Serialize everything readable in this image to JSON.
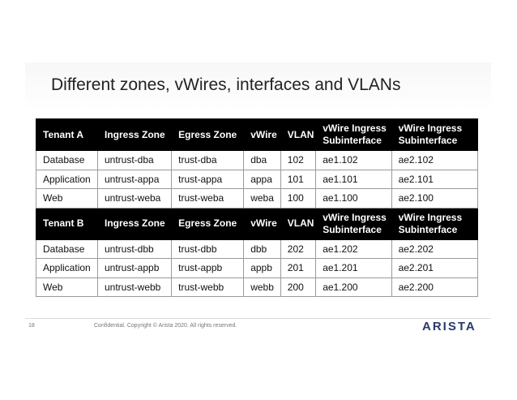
{
  "title": "Different zones, vWires, interfaces and VLANs",
  "table": {
    "sections": [
      {
        "header": [
          "Tenant A",
          "Ingress Zone",
          "Egress Zone",
          "vWire",
          "VLAN",
          "vWire Ingress Subinterface",
          "vWire Ingress Subinterface"
        ],
        "rows": [
          [
            "Database",
            "untrust-dba",
            "trust-dba",
            "dba",
            "102",
            "ae1.102",
            "ae2.102"
          ],
          [
            "Application",
            "untrust-appa",
            "trust-appa",
            "appa",
            "101",
            "ae1.101",
            "ae2.101"
          ],
          [
            "Web",
            "untrust-weba",
            "trust-weba",
            "weba",
            "100",
            "ae1.100",
            "ae2.100"
          ]
        ]
      },
      {
        "header": [
          "Tenant B",
          "Ingress Zone",
          "Egress Zone",
          "vWire",
          "VLAN",
          "vWire Ingress Subinterface",
          "vWire Ingress Subinterface"
        ],
        "rows": [
          [
            "Database",
            "untrust-dbb",
            "trust-dbb",
            "dbb",
            "202",
            "ae1.202",
            "ae2.202"
          ],
          [
            "Application",
            "untrust-appb",
            "trust-appb",
            "appb",
            "201",
            "ae1.201",
            "ae2.201"
          ],
          [
            "Web",
            "untrust-webb",
            "trust-webb",
            "webb",
            "200",
            "ae1.200",
            "ae2.200"
          ]
        ]
      }
    ]
  },
  "footer": {
    "page_number": "18",
    "confidential": "Confidential. Copyright © Arista 2020. All rights reserved.",
    "logo": "ARISTA"
  },
  "colors": {
    "header_bg": "#000000",
    "logo": "#27396b"
  }
}
